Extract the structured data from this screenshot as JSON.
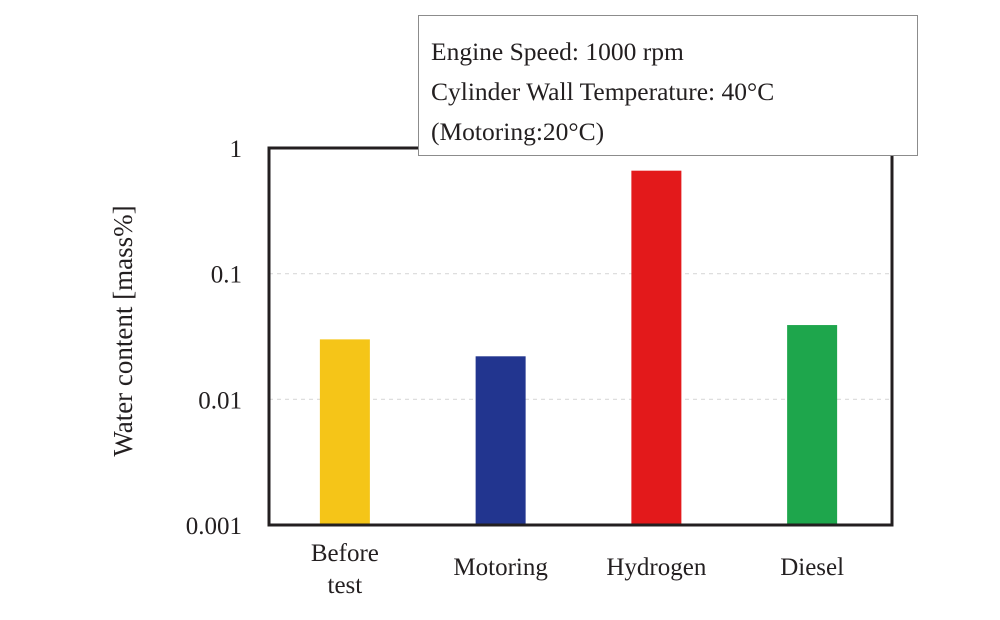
{
  "chart_data": {
    "type": "bar",
    "title": "",
    "xlabel": "",
    "ylabel": "Water content [mass%]",
    "yscale": "log",
    "ylim": [
      0.001,
      1
    ],
    "yticks": [
      1,
      0.1,
      0.01,
      0.001
    ],
    "ytick_labels": [
      "1",
      "0.1",
      "0.01",
      "0.001"
    ],
    "grid": "horizontal-dashed",
    "categories": [
      "Before test",
      "Motoring",
      "Hydrogen",
      "Diesel"
    ],
    "category_label_lines": [
      [
        "Before",
        "test"
      ],
      [
        "Motoring"
      ],
      [
        "Hydrogen"
      ],
      [
        "Diesel"
      ]
    ],
    "values": [
      0.03,
      0.022,
      0.66,
      0.039
    ],
    "colors": [
      "#f5c518",
      "#22358f",
      "#e3191b",
      "#1ea64c"
    ],
    "annotation": [
      "Engine Speed: 1000 rpm",
      "Cylinder Wall Temperature: 40°C",
      "(Motoring:20°C)"
    ]
  }
}
